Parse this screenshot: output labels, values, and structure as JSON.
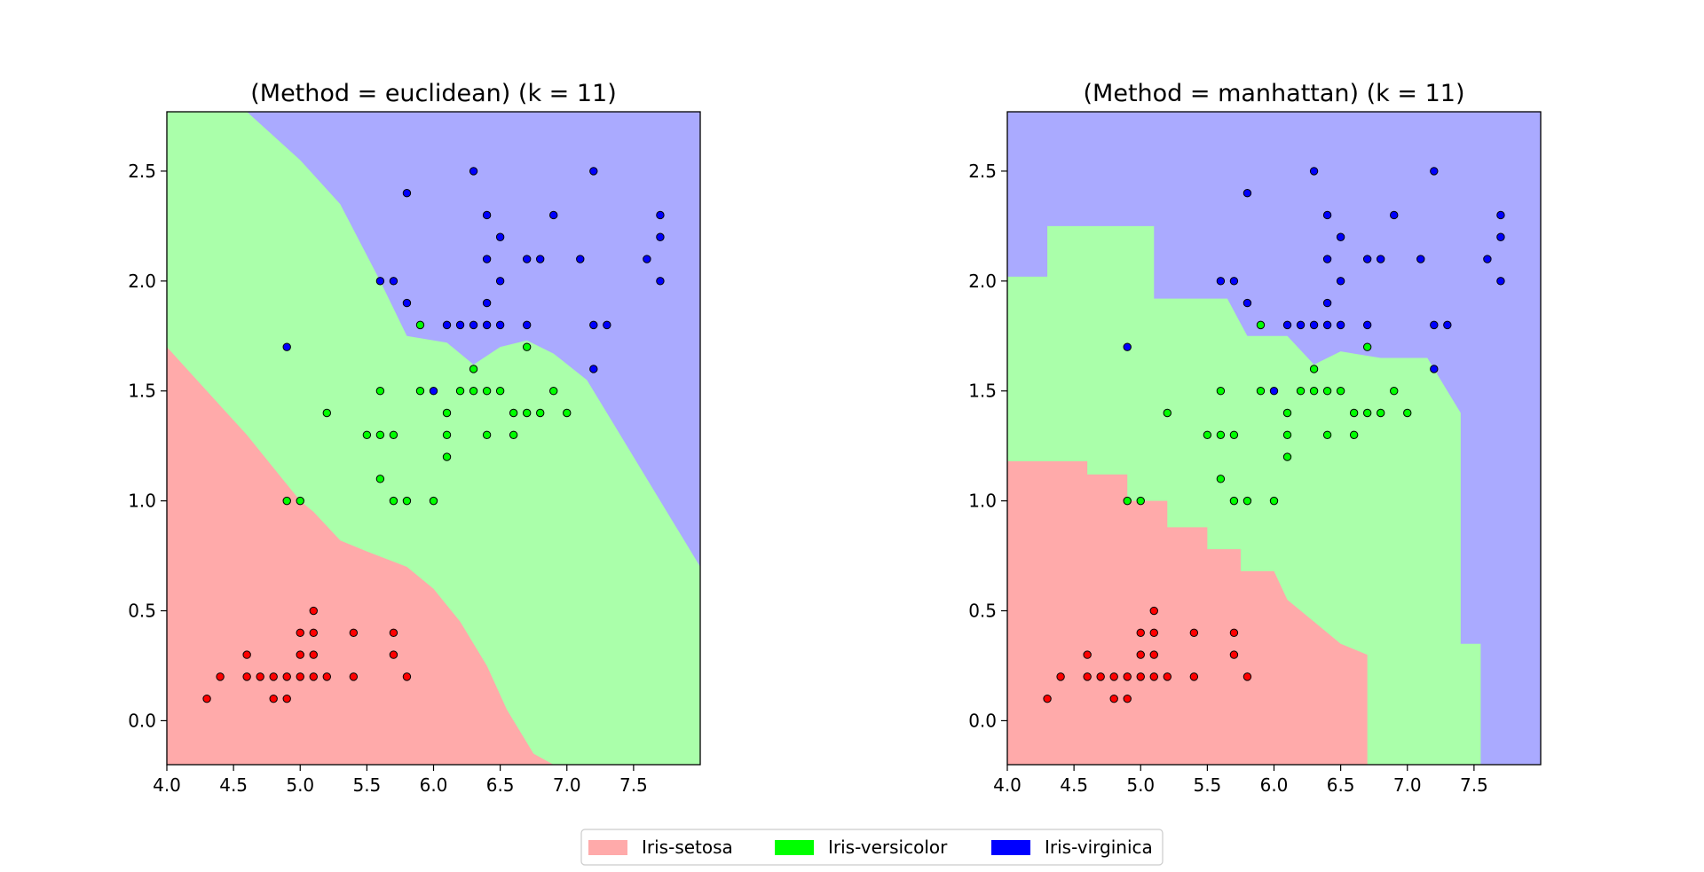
{
  "chart_data": [
    {
      "type": "scatter",
      "title": "(Method = euclidean) (k = 11)",
      "xlim": [
        4.0,
        8.0
      ],
      "ylim": [
        -0.2,
        2.77
      ],
      "xticks": [
        "4.0",
        "4.5",
        "5.0",
        "5.5",
        "6.0",
        "6.5",
        "7.0",
        "7.5"
      ],
      "yticks": [
        "0.0",
        "0.5",
        "1.0",
        "1.5",
        "2.0",
        "2.5"
      ],
      "grid": false,
      "regions": {
        "setosa_upper_boundary": [
          [
            4.0,
            1.7
          ],
          [
            4.3,
            1.5
          ],
          [
            4.6,
            1.3
          ],
          [
            4.8,
            1.15
          ],
          [
            5.0,
            1.0
          ],
          [
            5.1,
            0.95
          ],
          [
            5.3,
            0.82
          ],
          [
            5.5,
            0.77
          ],
          [
            5.8,
            0.7
          ],
          [
            6.0,
            0.6
          ],
          [
            6.2,
            0.45
          ],
          [
            6.4,
            0.25
          ],
          [
            6.55,
            0.05
          ],
          [
            6.75,
            -0.15
          ],
          [
            6.9,
            -0.2
          ]
        ],
        "virginica_lower_boundary": [
          [
            4.6,
            2.77
          ],
          [
            5.0,
            2.55
          ],
          [
            5.3,
            2.35
          ],
          [
            5.6,
            2.0
          ],
          [
            5.8,
            1.75
          ],
          [
            6.1,
            1.72
          ],
          [
            6.3,
            1.62
          ],
          [
            6.5,
            1.7
          ],
          [
            6.7,
            1.73
          ],
          [
            6.9,
            1.67
          ],
          [
            7.15,
            1.55
          ],
          [
            7.4,
            1.3
          ],
          [
            7.65,
            1.05
          ],
          [
            7.85,
            0.85
          ],
          [
            8.0,
            0.7
          ]
        ]
      },
      "series": [
        {
          "name": "Iris-setosa",
          "points": [
            [
              4.3,
              0.1
            ],
            [
              4.4,
              0.2
            ],
            [
              4.6,
              0.2
            ],
            [
              4.6,
              0.3
            ],
            [
              4.7,
              0.2
            ],
            [
              4.8,
              0.1
            ],
            [
              4.8,
              0.2
            ],
            [
              4.9,
              0.1
            ],
            [
              4.9,
              0.2
            ],
            [
              5.0,
              0.2
            ],
            [
              5.0,
              0.4
            ],
            [
              5.0,
              0.3
            ],
            [
              5.1,
              0.2
            ],
            [
              5.1,
              0.3
            ],
            [
              5.1,
              0.4
            ],
            [
              5.1,
              0.5
            ],
            [
              5.2,
              0.2
            ],
            [
              5.4,
              0.2
            ],
            [
              5.4,
              0.4
            ],
            [
              5.7,
              0.3
            ],
            [
              5.7,
              0.4
            ],
            [
              5.8,
              0.2
            ]
          ]
        },
        {
          "name": "Iris-versicolor",
          "points": [
            [
              4.9,
              1.0
            ],
            [
              5.0,
              1.0
            ],
            [
              5.2,
              1.4
            ],
            [
              5.5,
              1.3
            ],
            [
              5.6,
              1.1
            ],
            [
              5.6,
              1.3
            ],
            [
              5.6,
              1.5
            ],
            [
              5.7,
              1.0
            ],
            [
              5.7,
              1.3
            ],
            [
              5.8,
              1.0
            ],
            [
              5.9,
              1.5
            ],
            [
              5.9,
              1.8
            ],
            [
              6.0,
              1.0
            ],
            [
              6.1,
              1.2
            ],
            [
              6.1,
              1.3
            ],
            [
              6.1,
              1.4
            ],
            [
              6.2,
              1.5
            ],
            [
              6.3,
              1.5
            ],
            [
              6.3,
              1.6
            ],
            [
              6.4,
              1.3
            ],
            [
              6.4,
              1.5
            ],
            [
              6.5,
              1.5
            ],
            [
              6.6,
              1.3
            ],
            [
              6.6,
              1.4
            ],
            [
              6.7,
              1.4
            ],
            [
              6.7,
              1.7
            ],
            [
              6.8,
              1.4
            ],
            [
              6.9,
              1.5
            ],
            [
              7.0,
              1.4
            ]
          ]
        },
        {
          "name": "Iris-virginica",
          "points": [
            [
              4.9,
              1.7
            ],
            [
              5.6,
              2.0
            ],
            [
              5.7,
              2.0
            ],
            [
              5.8,
              1.9
            ],
            [
              5.8,
              2.4
            ],
            [
              6.0,
              1.5
            ],
            [
              6.1,
              1.8
            ],
            [
              6.2,
              1.8
            ],
            [
              6.3,
              1.8
            ],
            [
              6.3,
              2.5
            ],
            [
              6.4,
              1.8
            ],
            [
              6.4,
              1.9
            ],
            [
              6.4,
              2.1
            ],
            [
              6.4,
              2.3
            ],
            [
              6.5,
              1.8
            ],
            [
              6.5,
              2.0
            ],
            [
              6.5,
              2.2
            ],
            [
              6.7,
              1.8
            ],
            [
              6.7,
              2.1
            ],
            [
              6.8,
              2.1
            ],
            [
              6.9,
              2.3
            ],
            [
              7.1,
              2.1
            ],
            [
              7.2,
              1.6
            ],
            [
              7.2,
              1.8
            ],
            [
              7.2,
              2.5
            ],
            [
              7.3,
              1.8
            ],
            [
              7.6,
              2.1
            ],
            [
              7.7,
              2.0
            ],
            [
              7.7,
              2.2
            ],
            [
              7.7,
              2.3
            ]
          ]
        }
      ]
    },
    {
      "type": "scatter",
      "title": "(Method = manhattan) (k = 11)",
      "xlim": [
        4.0,
        8.0
      ],
      "ylim": [
        -0.2,
        2.77
      ],
      "xticks": [
        "4.0",
        "4.5",
        "5.0",
        "5.5",
        "6.0",
        "6.5",
        "7.0",
        "7.5"
      ],
      "yticks": [
        "0.0",
        "0.5",
        "1.0",
        "1.5",
        "2.0",
        "2.5"
      ],
      "grid": false,
      "regions": {
        "setosa_upper_boundary": [
          [
            4.0,
            1.18
          ],
          [
            4.6,
            1.18
          ],
          [
            4.6,
            1.12
          ],
          [
            4.9,
            1.12
          ],
          [
            4.9,
            1.0
          ],
          [
            5.2,
            1.0
          ],
          [
            5.2,
            0.88
          ],
          [
            5.5,
            0.88
          ],
          [
            5.5,
            0.78
          ],
          [
            5.75,
            0.78
          ],
          [
            5.75,
            0.68
          ],
          [
            6.0,
            0.68
          ],
          [
            6.1,
            0.55
          ],
          [
            6.3,
            0.45
          ],
          [
            6.5,
            0.35
          ],
          [
            6.7,
            0.3
          ],
          [
            6.7,
            -0.2
          ]
        ],
        "virginica_lower_boundary": [
          [
            4.0,
            2.02
          ],
          [
            4.3,
            2.02
          ],
          [
            4.3,
            2.25
          ],
          [
            5.1,
            2.25
          ],
          [
            5.1,
            1.92
          ],
          [
            5.65,
            1.92
          ],
          [
            5.8,
            1.75
          ],
          [
            6.1,
            1.75
          ],
          [
            6.3,
            1.62
          ],
          [
            6.5,
            1.68
          ],
          [
            6.8,
            1.65
          ],
          [
            7.15,
            1.65
          ],
          [
            7.3,
            1.5
          ],
          [
            7.4,
            1.4
          ],
          [
            7.4,
            0.35
          ],
          [
            7.55,
            0.35
          ],
          [
            7.55,
            -0.2
          ]
        ]
      },
      "series": [
        {
          "name": "Iris-setosa",
          "points": [
            [
              4.3,
              0.1
            ],
            [
              4.4,
              0.2
            ],
            [
              4.6,
              0.2
            ],
            [
              4.6,
              0.3
            ],
            [
              4.7,
              0.2
            ],
            [
              4.8,
              0.1
            ],
            [
              4.8,
              0.2
            ],
            [
              4.9,
              0.1
            ],
            [
              4.9,
              0.2
            ],
            [
              5.0,
              0.2
            ],
            [
              5.0,
              0.4
            ],
            [
              5.0,
              0.3
            ],
            [
              5.1,
              0.2
            ],
            [
              5.1,
              0.3
            ],
            [
              5.1,
              0.4
            ],
            [
              5.1,
              0.5
            ],
            [
              5.2,
              0.2
            ],
            [
              5.4,
              0.2
            ],
            [
              5.4,
              0.4
            ],
            [
              5.7,
              0.3
            ],
            [
              5.7,
              0.4
            ],
            [
              5.8,
              0.2
            ]
          ]
        },
        {
          "name": "Iris-versicolor",
          "points": [
            [
              4.9,
              1.0
            ],
            [
              5.0,
              1.0
            ],
            [
              5.2,
              1.4
            ],
            [
              5.5,
              1.3
            ],
            [
              5.6,
              1.1
            ],
            [
              5.6,
              1.3
            ],
            [
              5.6,
              1.5
            ],
            [
              5.7,
              1.0
            ],
            [
              5.7,
              1.3
            ],
            [
              5.8,
              1.0
            ],
            [
              5.9,
              1.5
            ],
            [
              5.9,
              1.8
            ],
            [
              6.0,
              1.0
            ],
            [
              6.1,
              1.2
            ],
            [
              6.1,
              1.3
            ],
            [
              6.1,
              1.4
            ],
            [
              6.2,
              1.5
            ],
            [
              6.3,
              1.5
            ],
            [
              6.3,
              1.6
            ],
            [
              6.4,
              1.3
            ],
            [
              6.4,
              1.5
            ],
            [
              6.5,
              1.5
            ],
            [
              6.6,
              1.3
            ],
            [
              6.6,
              1.4
            ],
            [
              6.7,
              1.4
            ],
            [
              6.7,
              1.7
            ],
            [
              6.8,
              1.4
            ],
            [
              6.9,
              1.5
            ],
            [
              7.0,
              1.4
            ]
          ]
        },
        {
          "name": "Iris-virginica",
          "points": [
            [
              4.9,
              1.7
            ],
            [
              5.6,
              2.0
            ],
            [
              5.7,
              2.0
            ],
            [
              5.8,
              1.9
            ],
            [
              5.8,
              2.4
            ],
            [
              6.0,
              1.5
            ],
            [
              6.1,
              1.8
            ],
            [
              6.2,
              1.8
            ],
            [
              6.3,
              1.8
            ],
            [
              6.3,
              2.5
            ],
            [
              6.4,
              1.8
            ],
            [
              6.4,
              1.9
            ],
            [
              6.4,
              2.1
            ],
            [
              6.4,
              2.3
            ],
            [
              6.5,
              1.8
            ],
            [
              6.5,
              2.0
            ],
            [
              6.5,
              2.2
            ],
            [
              6.7,
              1.8
            ],
            [
              6.7,
              2.1
            ],
            [
              6.8,
              2.1
            ],
            [
              6.9,
              2.3
            ],
            [
              7.1,
              2.1
            ],
            [
              7.2,
              1.6
            ],
            [
              7.2,
              1.8
            ],
            [
              7.2,
              2.5
            ],
            [
              7.3,
              1.8
            ],
            [
              7.6,
              2.1
            ],
            [
              7.7,
              2.0
            ],
            [
              7.7,
              2.2
            ],
            [
              7.7,
              2.3
            ]
          ]
        }
      ]
    }
  ],
  "colors": {
    "Iris-setosa": {
      "point": "#ff0000",
      "region": "#ffaaaa"
    },
    "Iris-versicolor": {
      "point": "#00ff00",
      "region": "#aaffaa"
    },
    "Iris-virginica": {
      "point": "#0000ff",
      "region": "#aaaaff"
    }
  },
  "legend": {
    "position": "bottom-center",
    "entries": [
      {
        "label": "Iris-setosa",
        "color": "#ffaaaa"
      },
      {
        "label": "Iris-versicolor",
        "color": "#00ff00"
      },
      {
        "label": "Iris-virginica",
        "color": "#0000ff"
      }
    ]
  }
}
